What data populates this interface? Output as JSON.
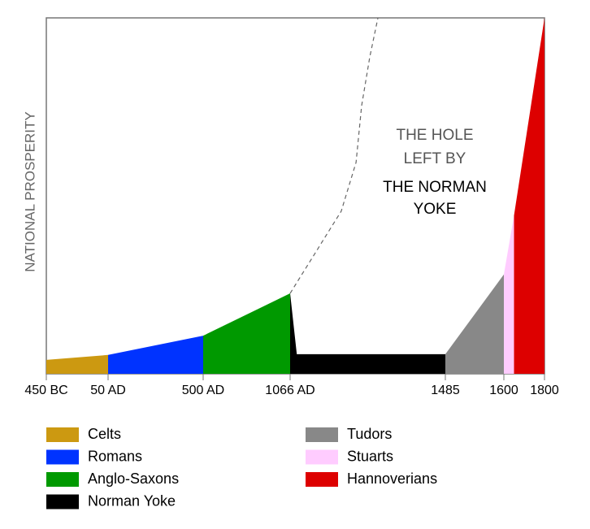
{
  "chart_data": {
    "type": "area",
    "ylabel": "NATIONAL PROSPERITY",
    "ylim": [
      0,
      100
    ],
    "xticks": [
      {
        "value": -450,
        "label": "450 BC"
      },
      {
        "value": 50,
        "label": "50 AD"
      },
      {
        "value": 500,
        "label": "500 AD"
      },
      {
        "value": 1066,
        "label": "1066 AD"
      },
      1485,
      1600,
      1800
    ],
    "xlim": [
      -450,
      1800
    ],
    "annotations": [
      "THE HOLE",
      "LEFT BY",
      "THE NORMAN",
      "YOKE"
    ],
    "series": [
      {
        "name": "Celts",
        "color": "#cc9911",
        "x": [
          -450,
          50
        ],
        "values": [
          3.9,
          5.3
        ]
      },
      {
        "name": "Romans",
        "color": "#0033ff",
        "x": [
          50,
          500
        ],
        "values": [
          5.3,
          10.7
        ]
      },
      {
        "name": "Anglo-Saxons",
        "color": "#009900",
        "x": [
          500,
          1066
        ],
        "values": [
          10.7,
          22.6
        ]
      },
      {
        "name": "Norman Yoke",
        "color": "#000000",
        "x": [
          1066,
          1084,
          1485
        ],
        "values": [
          22.6,
          5.5,
          5.5
        ]
      },
      {
        "name": "Tudors",
        "color": "#888888",
        "x": [
          1485,
          1600
        ],
        "values": [
          5.5,
          27.9
        ]
      },
      {
        "name": "Stuarts",
        "color": "#ffccff",
        "x": [
          1600,
          1650
        ],
        "values": [
          27.9,
          44.5
        ]
      },
      {
        "name": "Hannoverians",
        "color": "#dd0000",
        "x": [
          1650,
          1800
        ],
        "values": [
          44.5,
          100
        ]
      }
    ],
    "projection": {
      "color": "#666666",
      "x": [
        1066,
        1204,
        1244,
        1259,
        1281,
        1303
      ],
      "values": [
        22.6,
        45.7,
        59.4,
        75.3,
        89.0,
        100
      ]
    }
  }
}
